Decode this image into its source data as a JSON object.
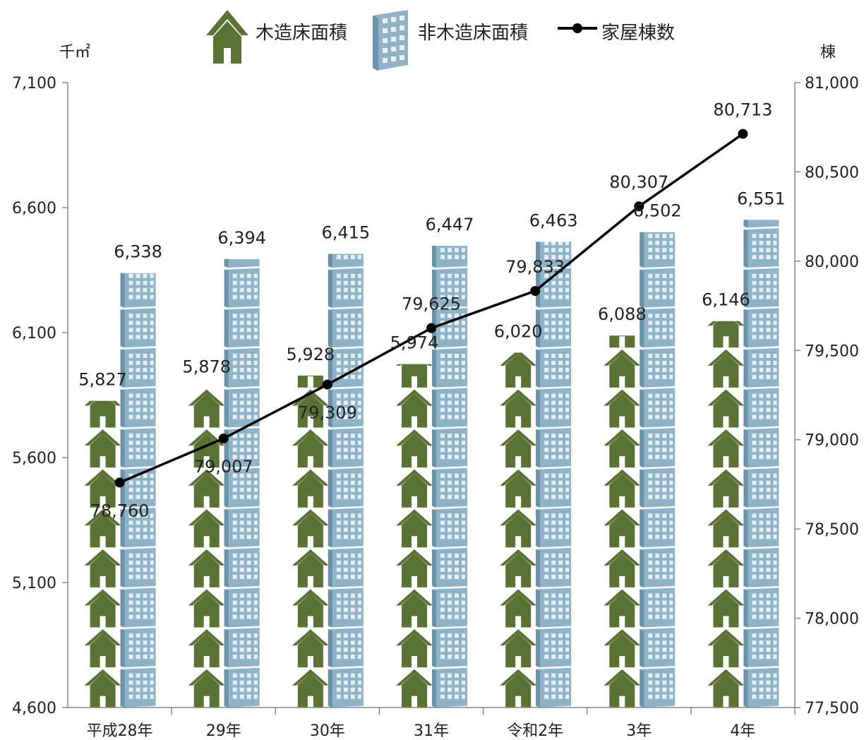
{
  "chart_data": {
    "type": "bar",
    "categories": [
      "平成28年",
      "29年",
      "30年",
      "31年",
      "令和2年",
      "3年",
      "4年"
    ],
    "series": [
      {
        "name": "木造床面積",
        "axis": "left",
        "chart": "pictogram-bar",
        "color": "#5a7233",
        "values": [
          5827,
          5878,
          5928,
          5974,
          6020,
          6088,
          6146
        ],
        "labels": [
          "5,827",
          "5,878",
          "5,928",
          "5,974",
          "6,020",
          "6,088",
          "6,146"
        ]
      },
      {
        "name": "非木造床面積",
        "axis": "left",
        "chart": "pictogram-bar",
        "color": "#8fb4c8",
        "values": [
          6338,
          6394,
          6415,
          6447,
          6463,
          6502,
          6551
        ],
        "labels": [
          "6,338",
          "6,394",
          "6,415",
          "6,447",
          "6,463",
          "6,502",
          "6,551"
        ]
      },
      {
        "name": "家屋棟数",
        "axis": "right",
        "chart": "line",
        "color": "#000000",
        "values": [
          78760,
          79007,
          79309,
          79625,
          79833,
          80307,
          80713
        ],
        "labels": [
          "78,760",
          "79,007",
          "79,309",
          "79,625",
          "79,833",
          "80,307",
          "80,713"
        ]
      }
    ],
    "y_left": {
      "unit": "千㎡",
      "ylim": [
        4600,
        7100
      ],
      "ticks": [
        4600,
        5100,
        5600,
        6100,
        6600,
        7100
      ],
      "tick_labels": [
        "4,600",
        "5,100",
        "5,600",
        "6,100",
        "6,600",
        "7,100"
      ]
    },
    "y_right": {
      "unit": "棟",
      "ylim": [
        77500,
        81000
      ],
      "ticks": [
        77500,
        78000,
        78500,
        79000,
        79500,
        80000,
        80500,
        81000
      ],
      "tick_labels": [
        "77,500",
        "78,000",
        "78,500",
        "79,000",
        "79,500",
        "80,000",
        "80,500",
        "81,000"
      ]
    },
    "grid": false,
    "legend_position": "top"
  }
}
